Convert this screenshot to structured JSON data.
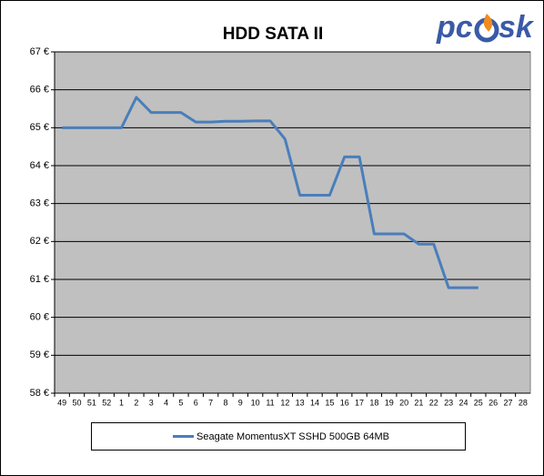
{
  "chart_data": {
    "type": "line",
    "title": "HDD SATA II",
    "logo": {
      "left": "pc",
      "right": "sk"
    },
    "categories": [
      "49",
      "50",
      "51",
      "52",
      "1",
      "2",
      "3",
      "4",
      "5",
      "6",
      "7",
      "8",
      "9",
      "10",
      "11",
      "12",
      "13",
      "14",
      "15",
      "16",
      "17",
      "18",
      "19",
      "20",
      "21",
      "22",
      "23",
      "24",
      "25",
      "26",
      "27",
      "28"
    ],
    "series": [
      {
        "name": "Seagate MomentusXT SSHD 500GB 64MB",
        "color": "#4a7ebb",
        "values": [
          65.0,
          65.0,
          65.0,
          65.0,
          65.0,
          65.8,
          65.4,
          65.4,
          65.4,
          65.15,
          65.15,
          65.17,
          65.17,
          65.18,
          65.18,
          64.7,
          63.22,
          63.22,
          63.22,
          64.23,
          64.23,
          62.2,
          62.2,
          62.2,
          61.93,
          61.93,
          60.78,
          60.78,
          60.78,
          null,
          null,
          null
        ]
      }
    ],
    "ylim": [
      58,
      67
    ],
    "yticks": [
      {
        "value": 58,
        "label": "58 €"
      },
      {
        "value": 59,
        "label": "59 €"
      },
      {
        "value": 60,
        "label": "60 €"
      },
      {
        "value": 61,
        "label": "61 €"
      },
      {
        "value": 62,
        "label": "62 €"
      },
      {
        "value": 63,
        "label": "63 €"
      },
      {
        "value": 64,
        "label": "64 €"
      },
      {
        "value": 65,
        "label": "65 €"
      },
      {
        "value": 66,
        "label": "66 €"
      },
      {
        "value": 67,
        "label": "67 €"
      }
    ],
    "grid": true,
    "plot_background": "#c0c0c0"
  }
}
